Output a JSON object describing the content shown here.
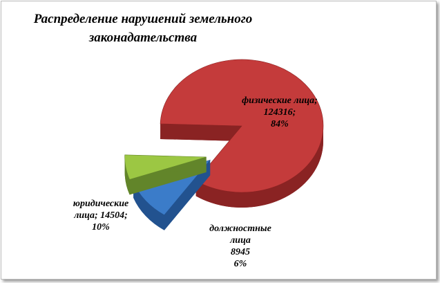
{
  "chart_data": {
    "type": "pie",
    "title": "Распределение нарушений земельного законадательства",
    "categories": [
      "физические лица;",
      "юридические лица;",
      "должностные лица"
    ],
    "counts": [
      124316,
      14504,
      8945
    ],
    "count_labels": [
      "124316;",
      "14504;",
      "8945"
    ],
    "values": [
      84,
      10,
      6
    ],
    "value_labels": [
      "84%",
      "10%",
      "6%"
    ],
    "colors": [
      "#c43b3b",
      "#3b7cc9",
      "#9cc743"
    ],
    "side_colors": [
      "#8a2323",
      "#22528f",
      "#62852a"
    ]
  }
}
